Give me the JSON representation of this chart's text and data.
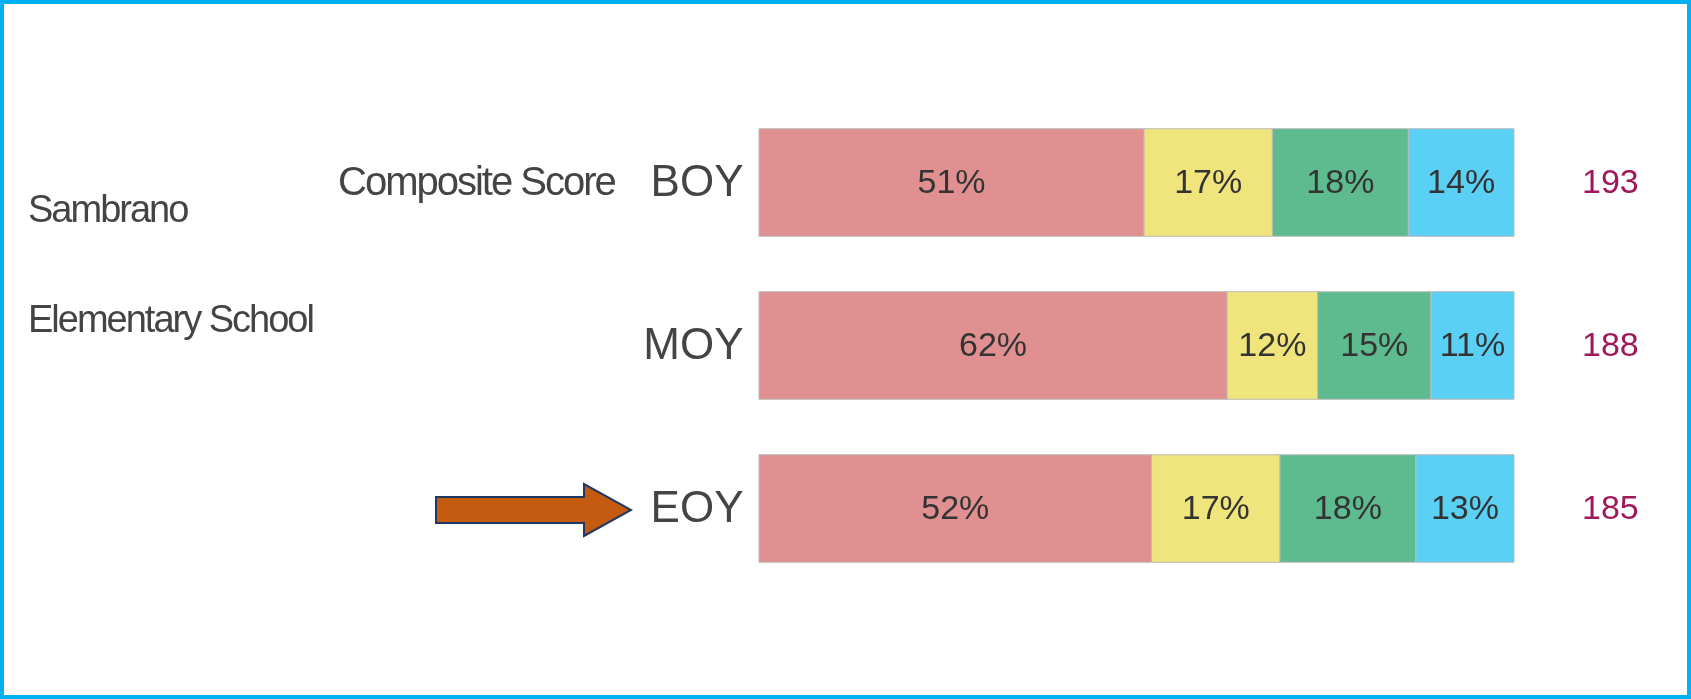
{
  "chart_data": {
    "type": "bar",
    "orientation": "horizontal",
    "stacked": true,
    "title": "Sambrano Elementary School",
    "subtitle": "Composite Score",
    "categories": [
      "BOY",
      "MOY",
      "EOY"
    ],
    "series": [
      {
        "color": "#e09090",
        "values": [
          51,
          62,
          52
        ],
        "value_labels": [
          "51%",
          "62%",
          "52%"
        ]
      },
      {
        "color": "#f0e47c",
        "values": [
          17,
          12,
          17
        ],
        "value_labels": [
          "17%",
          "12%",
          "17%"
        ]
      },
      {
        "color": "#5dbb8f",
        "values": [
          18,
          15,
          18
        ],
        "value_labels": [
          "18%",
          "15%",
          "18%"
        ]
      },
      {
        "color": "#5bd0f5",
        "values": [
          14,
          11,
          13
        ],
        "value_labels": [
          "14%",
          "11%",
          "13%"
        ]
      }
    ],
    "annotations": [
      "193",
      "188",
      "185"
    ],
    "grid": false
  }
}
